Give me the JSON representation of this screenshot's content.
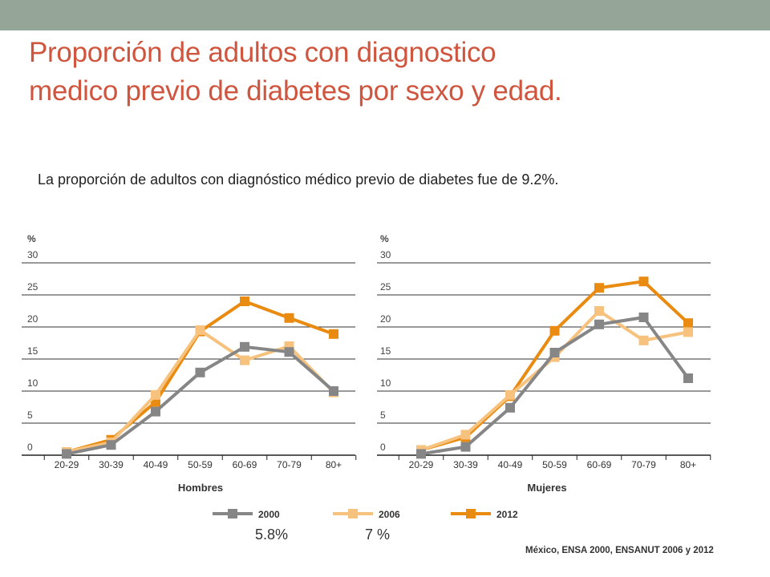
{
  "slide": {
    "title_line1": "Proporción de adultos con diagnostico",
    "title_line2": "medico previo  de diabetes por sexo y edad.",
    "subtitle": "La proporción de adultos con diagnóstico médico previo de diabetes fue de 9.2%.",
    "note_2000": "5.8%",
    "note_2006": "7 %",
    "source": "México, ENSA 2000, ENSANUT 2006 y 2012"
  },
  "colors": {
    "2000": "#868686",
    "2006": "#f6c27d",
    "2012": "#ea8b11",
    "title": "#d0553f",
    "topbar": "#95a597"
  },
  "chart_data": [
    {
      "type": "line",
      "xlabel": "Hombres",
      "ylabel": "%",
      "ylim": [
        0,
        30
      ],
      "yticks": [
        "0",
        "5",
        "10",
        "15",
        "20",
        "25",
        "30"
      ],
      "categories": [
        "20-29",
        "30-39",
        "40-49",
        "50-59",
        "60-69",
        "70-79",
        "80+"
      ],
      "series": [
        {
          "name": "2000",
          "values": [
            0.2,
            1.6,
            6.8,
            12.9,
            16.9,
            16.1,
            10.0
          ]
        },
        {
          "name": "2006",
          "values": [
            0.5,
            2.0,
            9.4,
            19.5,
            14.8,
            17.0,
            9.8
          ]
        },
        {
          "name": "2012",
          "values": [
            0.5,
            2.4,
            8.3,
            19.3,
            24.0,
            21.4,
            18.9
          ]
        }
      ],
      "grid": true,
      "legend": "bottom"
    },
    {
      "type": "line",
      "xlabel": "Mujeres",
      "ylabel": "%",
      "ylim": [
        0,
        30
      ],
      "yticks": [
        "0",
        "5",
        "10",
        "15",
        "20",
        "25",
        "30"
      ],
      "categories": [
        "20-29",
        "30-39",
        "40-49",
        "50-59",
        "60-69",
        "70-79",
        "80+"
      ],
      "series": [
        {
          "name": "2000",
          "values": [
            0.2,
            1.3,
            7.4,
            16.0,
            20.4,
            21.5,
            12.0
          ]
        },
        {
          "name": "2006",
          "values": [
            0.8,
            3.2,
            9.4,
            15.3,
            22.5,
            17.9,
            19.2
          ]
        },
        {
          "name": "2012",
          "values": [
            0.8,
            2.8,
            9.2,
            19.4,
            26.1,
            27.1,
            20.6
          ]
        }
      ],
      "grid": true,
      "legend": "bottom"
    }
  ],
  "legend": [
    {
      "name": "2000",
      "color": "#868686"
    },
    {
      "name": "2006",
      "color": "#f6c27d"
    },
    {
      "name": "2012",
      "color": "#ea8b11"
    }
  ]
}
